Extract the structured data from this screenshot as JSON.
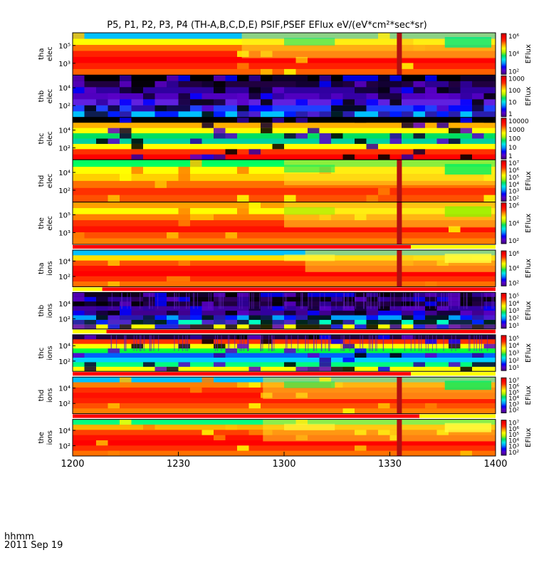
{
  "title": "P5, P1, P2, P3, P4 (TH-A,B,C,D,E) PSIF,PSEF EFlux eV/(eV*cm²*sec*sr)",
  "time_axis": {
    "unit_label": "hhmm",
    "date_label": "2011 Sep 19",
    "ticks": [
      "1200",
      "1230",
      "1300",
      "1330",
      "1400"
    ]
  },
  "chart_data": {
    "type": "heatmap",
    "title": "P5, P1, P2, P3, P4 (TH-A,B,C,D,E) PSIF,PSEF EFlux eV/(eV*cm²*sec*sr)",
    "x": {
      "label": "hhmm",
      "date": "2011 Sep 19",
      "range": [
        "1200",
        "1400"
      ],
      "ticks": [
        "1200",
        "1230",
        "1300",
        "1330",
        "1400"
      ]
    },
    "panels": [
      {
        "name": "tha elec",
        "ylabel": [
          "tha",
          "elec"
        ],
        "yticks": [
          "10⁵",
          "10³"
        ],
        "colorbar_label": "EFlux",
        "colorbar_ticks": [
          "10⁶",
          "10⁴",
          "10²"
        ],
        "bar_above": false,
        "bar_break": null
      },
      {
        "name": "thb elec",
        "ylabel": [
          "thb",
          "elec"
        ],
        "yticks": [
          "10⁴",
          "10²"
        ],
        "colorbar_label": "EFlux",
        "colorbar_ticks": [
          "1000",
          "100",
          "10",
          "1"
        ],
        "bar_above": false,
        "bar_break": null
      },
      {
        "name": "thc elec",
        "ylabel": [
          "thc",
          "elec"
        ],
        "yticks": [
          "10⁴",
          "10²"
        ],
        "colorbar_label": "",
        "colorbar_ticks": [
          "10000",
          "1000",
          "100",
          "10",
          "1"
        ],
        "bar_above": false,
        "bar_break": null
      },
      {
        "name": "thd elec",
        "ylabel": [
          "thd",
          "elec"
        ],
        "yticks": [
          "10⁴",
          "10²"
        ],
        "colorbar_label": "EFlux",
        "colorbar_ticks": [
          "10⁷",
          "10⁶",
          "10⁵",
          "10⁴",
          "10³",
          "10²"
        ],
        "bar_above": false,
        "bar_break": null
      },
      {
        "name": "the elec",
        "ylabel": [
          "the",
          "elec"
        ],
        "yticks": [
          "10⁵",
          "10³"
        ],
        "colorbar_label": "EFlux",
        "colorbar_ticks": [
          "10⁶",
          "10⁴",
          "10²"
        ],
        "bar_above": false,
        "bar_break": null
      },
      {
        "name": "tha ions",
        "ylabel": [
          "tha",
          "ions"
        ],
        "yticks": [
          "10⁴",
          "10²"
        ],
        "colorbar_label": "EFlux",
        "colorbar_ticks": [
          "10⁶",
          "10⁴",
          "10²"
        ],
        "bar_above": true,
        "bar_break": 0.8
      },
      {
        "name": "thb ions",
        "ylabel": [
          "thb",
          "ions"
        ],
        "yticks": [
          "10⁴",
          "10²"
        ],
        "colorbar_label": "EFlux",
        "colorbar_ticks": [
          "10⁵",
          "10⁴",
          "10³",
          "10²",
          "10¹"
        ],
        "bar_above": true,
        "bar_break": 0.07
      },
      {
        "name": "thc ions",
        "ylabel": [
          "thc",
          "ions"
        ],
        "yticks": [
          "10⁴",
          "10²"
        ],
        "colorbar_label": "EFlux",
        "colorbar_ticks": [
          "10⁵",
          "10⁴",
          "10³",
          "10²",
          "10¹"
        ],
        "bar_above": true,
        "bar_break": 0.08
      },
      {
        "name": "thd ions",
        "ylabel": [
          "thd",
          "ions"
        ],
        "yticks": [
          "10⁴",
          "10²"
        ],
        "colorbar_label": "EFlux",
        "colorbar_ticks": [
          "10⁷",
          "10⁶",
          "10⁵",
          "10⁴",
          "10³",
          "10²"
        ],
        "bar_above": true,
        "bar_break": 0.8
      },
      {
        "name": "the ions",
        "ylabel": [
          "the",
          "ions"
        ],
        "yticks": [
          "10⁴",
          "10²"
        ],
        "colorbar_label": "EFlux",
        "colorbar_ticks": [
          "10⁷",
          "10⁶",
          "10⁵",
          "10⁴",
          "10³",
          "10²"
        ],
        "bar_above": true,
        "bar_break": 0.82
      }
    ],
    "colormap": [
      "#3a007a",
      "#5a00c8",
      "#0000ff",
      "#0090ff",
      "#00e8e8",
      "#00e060",
      "#b0f000",
      "#ffff00",
      "#ffa000",
      "#ff3000",
      "#ff0000",
      "#c00000"
    ],
    "grid": false
  }
}
